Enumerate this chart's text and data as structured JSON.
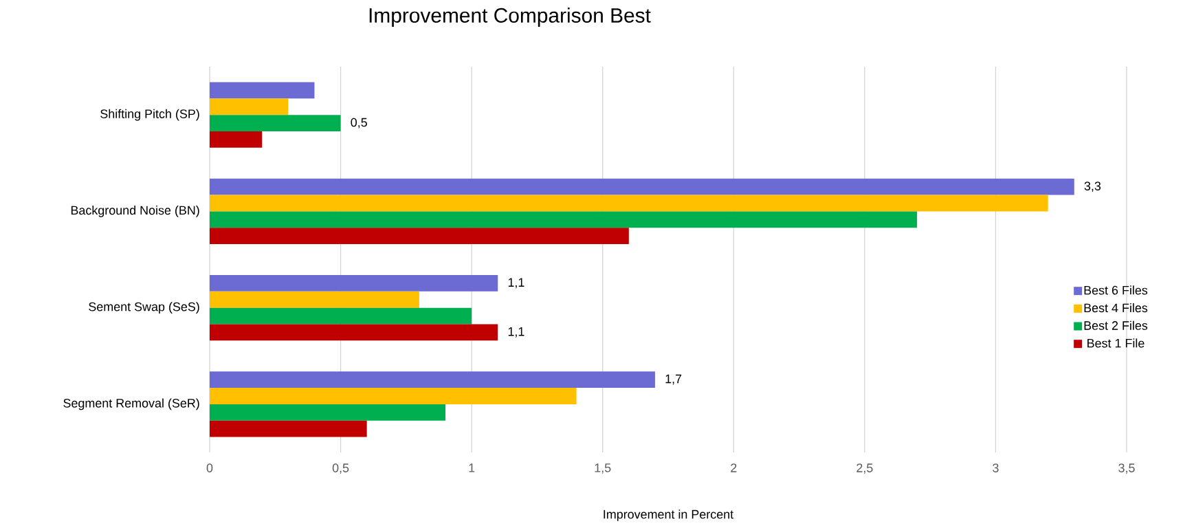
{
  "chart_data": {
    "type": "bar",
    "orientation": "horizontal",
    "title": "Improvement Comparison Best",
    "xlabel": "Improvement in Percent",
    "categories": [
      "Shifting Pitch (SP)",
      "Background Noise (BN)",
      "Sement Swap (SeS)",
      "Segment Removal (SeR)"
    ],
    "series": [
      {
        "name": "Best 6 Files",
        "color": "#6b6bd3",
        "values": [
          0.4,
          3.3,
          1.1,
          1.7
        ],
        "value_labels": [
          null,
          "3,3",
          "1,1",
          "1,7"
        ]
      },
      {
        "name": "Best 4 Files",
        "color": "#ffc000",
        "values": [
          0.3,
          3.2,
          0.8,
          1.4
        ]
      },
      {
        "name": "Best 2 Files",
        "color": "#00b050",
        "values": [
          0.5,
          2.7,
          1.0,
          0.9
        ],
        "value_labels": [
          "0,5",
          null,
          null,
          null
        ]
      },
      {
        "name": "Best 1 File",
        "color": "#c00000",
        "values": [
          0.2,
          1.6,
          1.1,
          0.6
        ],
        "value_labels": [
          null,
          null,
          "1,1",
          null
        ]
      }
    ],
    "xlim": [
      0,
      3.5
    ],
    "xticks": [
      0,
      {
        "value": 0.5,
        "label": "0,5"
      },
      1,
      {
        "value": 1.5,
        "label": "1,5"
      },
      2,
      {
        "value": 2.5,
        "label": "2,5"
      },
      3,
      {
        "value": 3.5,
        "label": "3,5"
      }
    ],
    "grid": "x",
    "legend": "right"
  }
}
